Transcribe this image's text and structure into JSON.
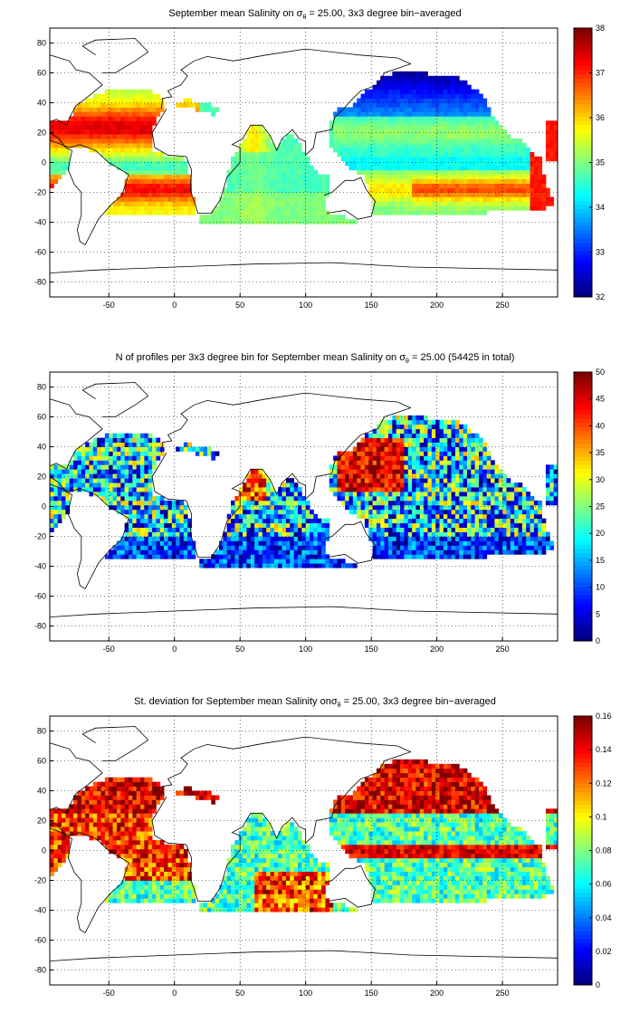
{
  "panels": [
    {
      "title_parts": [
        "September mean Salinity on ",
        "σ",
        "θ",
        " = 25.00, 3x3 degree bin−averaged"
      ],
      "colorbar": {
        "min": 32,
        "max": 38,
        "ticks": [
          "32",
          "33",
          "34",
          "35",
          "36",
          "37",
          "38"
        ]
      },
      "field": "salinity"
    },
    {
      "title_parts": [
        "N of profiles per 3x3 degree bin for September mean Salinity on ",
        "σ",
        "θ",
        " = 25.00 (54425 in total)"
      ],
      "colorbar": {
        "min": 0,
        "max": 50,
        "ticks": [
          "0",
          "5",
          "10",
          "15",
          "20",
          "25",
          "30",
          "35",
          "40",
          "45",
          "50"
        ]
      },
      "field": "count"
    },
    {
      "title_parts": [
        "St. deviation for September mean Salinity on",
        "σ",
        "θ",
        " = 25.00, 3x3 degree bin−averaged"
      ],
      "colorbar": {
        "min": 0,
        "max": 0.16,
        "ticks": [
          "0",
          "0.02",
          "0.04",
          "0.06",
          "0.08",
          "0.1",
          "0.12",
          "0.14",
          "0.16"
        ]
      },
      "field": "stdev"
    }
  ],
  "axes": {
    "x_ticks": [
      "-50",
      "0",
      "50",
      "100",
      "150",
      "200",
      "250"
    ],
    "y_ticks": [
      "80",
      "60",
      "40",
      "20",
      "0",
      "-20",
      "-40",
      "-60",
      "-80"
    ],
    "xlim": [
      -95,
      292
    ],
    "ylim": [
      -90,
      90
    ],
    "grid": "dotted"
  },
  "colormap": "jet"
}
